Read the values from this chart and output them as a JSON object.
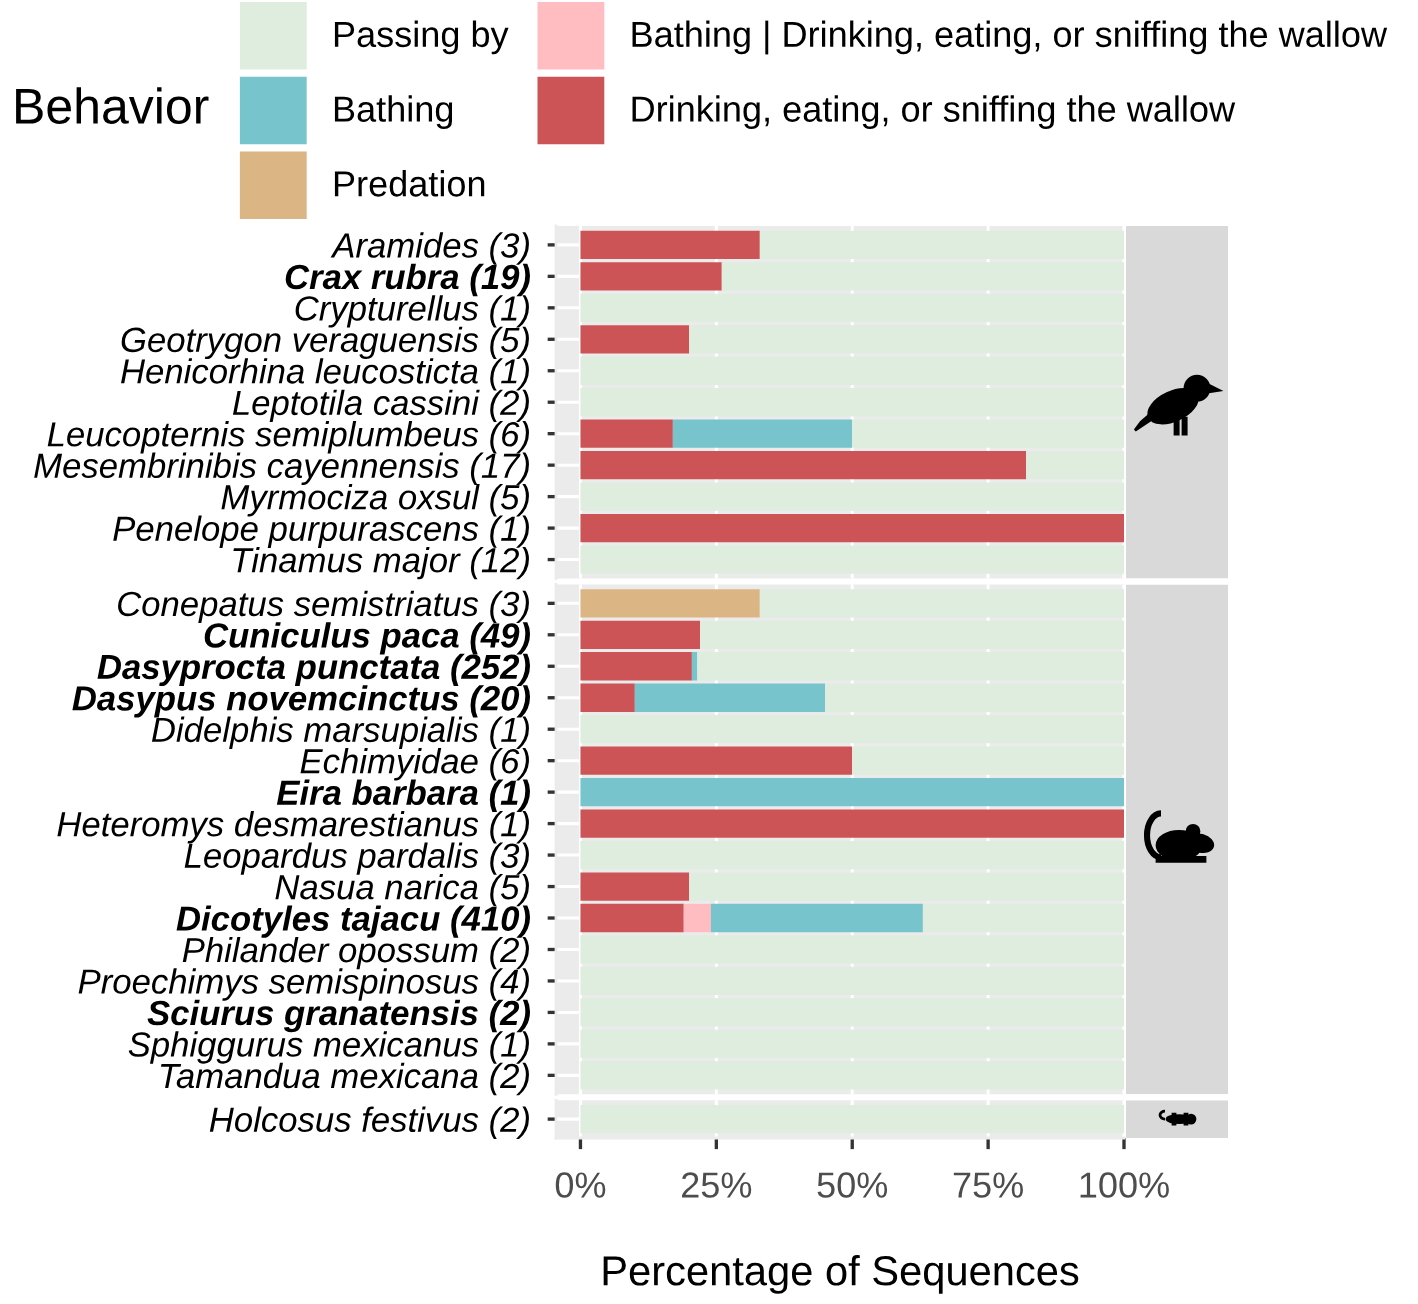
{
  "chart_data": [
    {
      "type": "bar",
      "orientation": "horizontal",
      "stacked": true,
      "legend": "top",
      "legend_title": "Behavior",
      "grid": true,
      "tick_labels": "y",
      "xlim": [
        -4.5,
        100
      ],
      "xticks": [
        0,
        25,
        50,
        75,
        100
      ],
      "categories": [
        "Aramides (3)",
        "Crax rubra (19)",
        "Crypturellus (1)",
        "Geotrygon veraguensis (5)",
        "Henicorhina leucosticta (1)",
        "Leptotila cassini (2)",
        "Leucopternis semiplumbeus (6)",
        "Mesembrinibis cayennensis (17)",
        "Myrmociza oxsul (5)",
        "Penelope purpurascens (1)",
        "Tinamus major (12)"
      ],
      "series": [
        {
          "name": "Drinking, eating, or sniffing the wallow",
          "color": "#cd5456",
          "values": [
            33,
            26,
            null,
            20,
            null,
            null,
            17,
            82,
            null,
            100,
            null
          ]
        },
        {
          "name": "Bathing | Drinking, eating, or sniffing the wallow",
          "color": "#ffbcc1",
          "values": [
            null,
            null,
            null,
            null,
            null,
            null,
            null,
            null,
            null,
            null,
            null
          ]
        },
        {
          "name": "Predation",
          "color": "#dcb584",
          "values": [
            null,
            null,
            null,
            null,
            null,
            null,
            null,
            null,
            null,
            null,
            null
          ]
        },
        {
          "name": "Bathing",
          "color": "#77c4cc",
          "values": [
            null,
            null,
            null,
            null,
            null,
            null,
            33,
            null,
            null,
            null,
            null
          ]
        },
        {
          "name": "Passing by",
          "color": "#dfeddf",
          "values": [
            67,
            74,
            100,
            80,
            100,
            100,
            50,
            18,
            100,
            null,
            100
          ]
        }
      ]
    },
    {
      "type": "bar",
      "orientation": "horizontal",
      "stacked": true,
      "grid": true,
      "tick_labels": "y",
      "xlim": [
        -4.5,
        100
      ],
      "xticks": [
        0,
        25,
        50,
        75,
        100
      ],
      "categories": [
        "Conepatus semistriatus (3)",
        "Cuniculus paca (49)",
        "Dasyprocta punctata (252)",
        "Dasypus novemcinctus (20)",
        "Didelphis marsupialis (1)",
        "Echimyidae (6)",
        "Eira barbara (1)",
        "Heteromys desmarestianus (1)",
        "Leopardus pardalis (3)",
        "Nasua narica (5)",
        "Dicotyles tajacu (410)",
        "Philander opossum (2)",
        "Proechimys semispinosus (4)",
        "Sciurus granatensis (2)",
        "Sphiggurus mexicanus (1)",
        "Tamandua mexicana (2)"
      ],
      "series": [
        {
          "color": "#cd5456",
          "values": [
            null,
            22,
            20.5,
            10,
            null,
            50,
            null,
            100,
            null,
            20,
            19,
            null,
            null,
            null,
            null,
            null
          ]
        },
        {
          "color": "#ffbcc1",
          "values": [
            null,
            null,
            null,
            null,
            null,
            null,
            null,
            null,
            null,
            null,
            5,
            null,
            null,
            null,
            null,
            null
          ]
        },
        {
          "color": "#dcb584",
          "values": [
            33,
            null,
            null,
            null,
            null,
            null,
            null,
            null,
            null,
            null,
            null,
            null,
            null,
            null,
            null,
            null
          ]
        },
        {
          "color": "#77c4cc",
          "values": [
            null,
            null,
            1,
            35,
            null,
            null,
            100,
            null,
            null,
            null,
            39,
            null,
            null,
            null,
            null,
            null
          ]
        },
        {
          "color": "#dfeddf",
          "values": [
            67,
            78,
            78.5,
            55,
            100,
            50,
            null,
            null,
            100,
            80,
            37,
            100,
            100,
            100,
            100,
            100
          ]
        }
      ]
    },
    {
      "type": "bar",
      "orientation": "horizontal",
      "stacked": true,
      "grid": true,
      "xlabel": "Percentage of Sequences",
      "xlim": [
        -4.5,
        100
      ],
      "xticks": [
        {
          "value": 0,
          "label": "0%"
        },
        {
          "value": 25,
          "label": "25%"
        },
        {
          "value": 50,
          "label": "50%"
        },
        {
          "value": 75,
          "label": "75%"
        },
        {
          "value": 100,
          "label": "100%"
        }
      ],
      "categories": [
        "Holcosus festivus (2)"
      ],
      "series": [
        {
          "color": "#dfeddf",
          "values": [
            100
          ]
        }
      ]
    }
  ]
}
